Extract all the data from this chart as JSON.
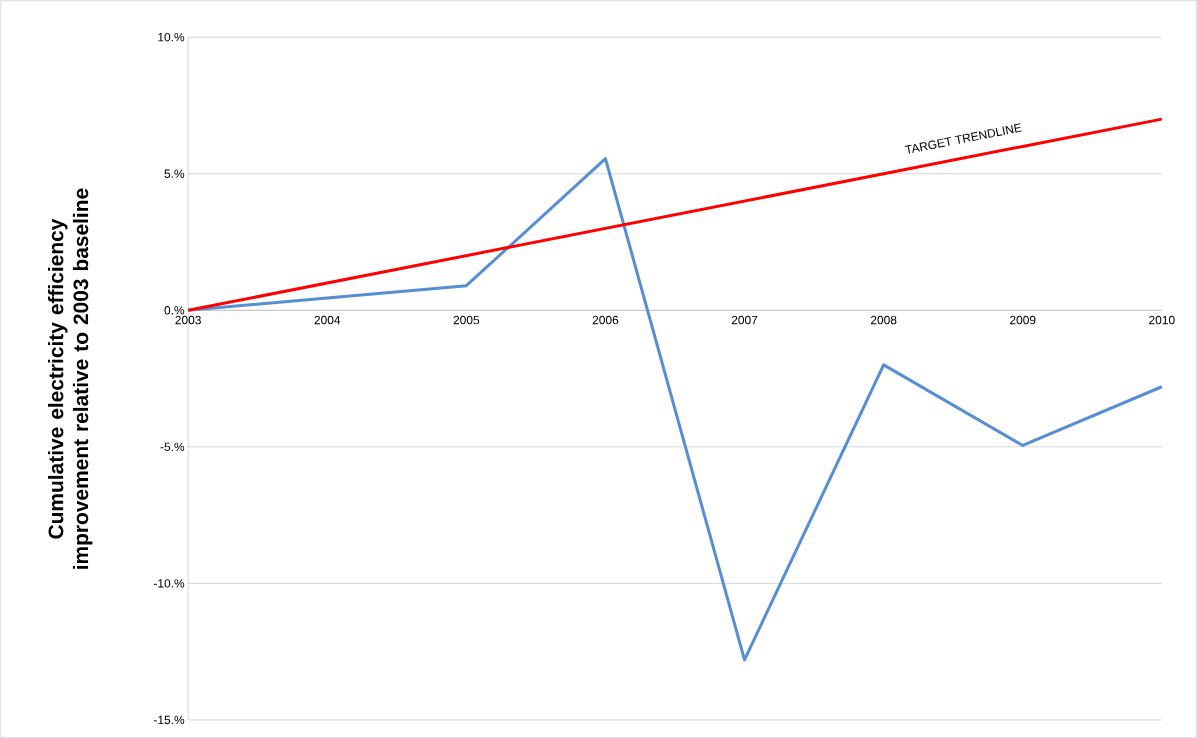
{
  "chart_data": {
    "type": "line",
    "ylabel": "Cumulative electricity efficiency improvement relative to 2003 baseline",
    "x": [
      2003,
      2004,
      2005,
      2006,
      2007,
      2008,
      2009,
      2010
    ],
    "series": [
      {
        "color": "#558ed5",
        "values": [
          0,
          0.45,
          0.9,
          5.55,
          -12.8,
          -2.0,
          -4.95,
          -2.8
        ]
      },
      {
        "name": "TARGET TRENDLINE",
        "color": "#ff0000",
        "values": [
          0,
          1,
          2,
          3,
          4,
          5,
          6,
          7
        ]
      }
    ],
    "xlim": [
      2003,
      2010
    ],
    "xticks": [
      2003,
      2004,
      2005,
      2006,
      2007,
      2008,
      2009,
      2010
    ],
    "ylim": [
      -15,
      10
    ],
    "yticks": [
      {
        "value": -15,
        "label": "-15.%"
      },
      {
        "value": -10,
        "label": "-10.%"
      },
      {
        "value": -5,
        "label": "-5.%"
      },
      {
        "value": 0,
        "label": "0.%"
      },
      {
        "value": 5,
        "label": "5.%"
      },
      {
        "value": 10,
        "label": "10.%"
      }
    ],
    "grid": "y"
  }
}
